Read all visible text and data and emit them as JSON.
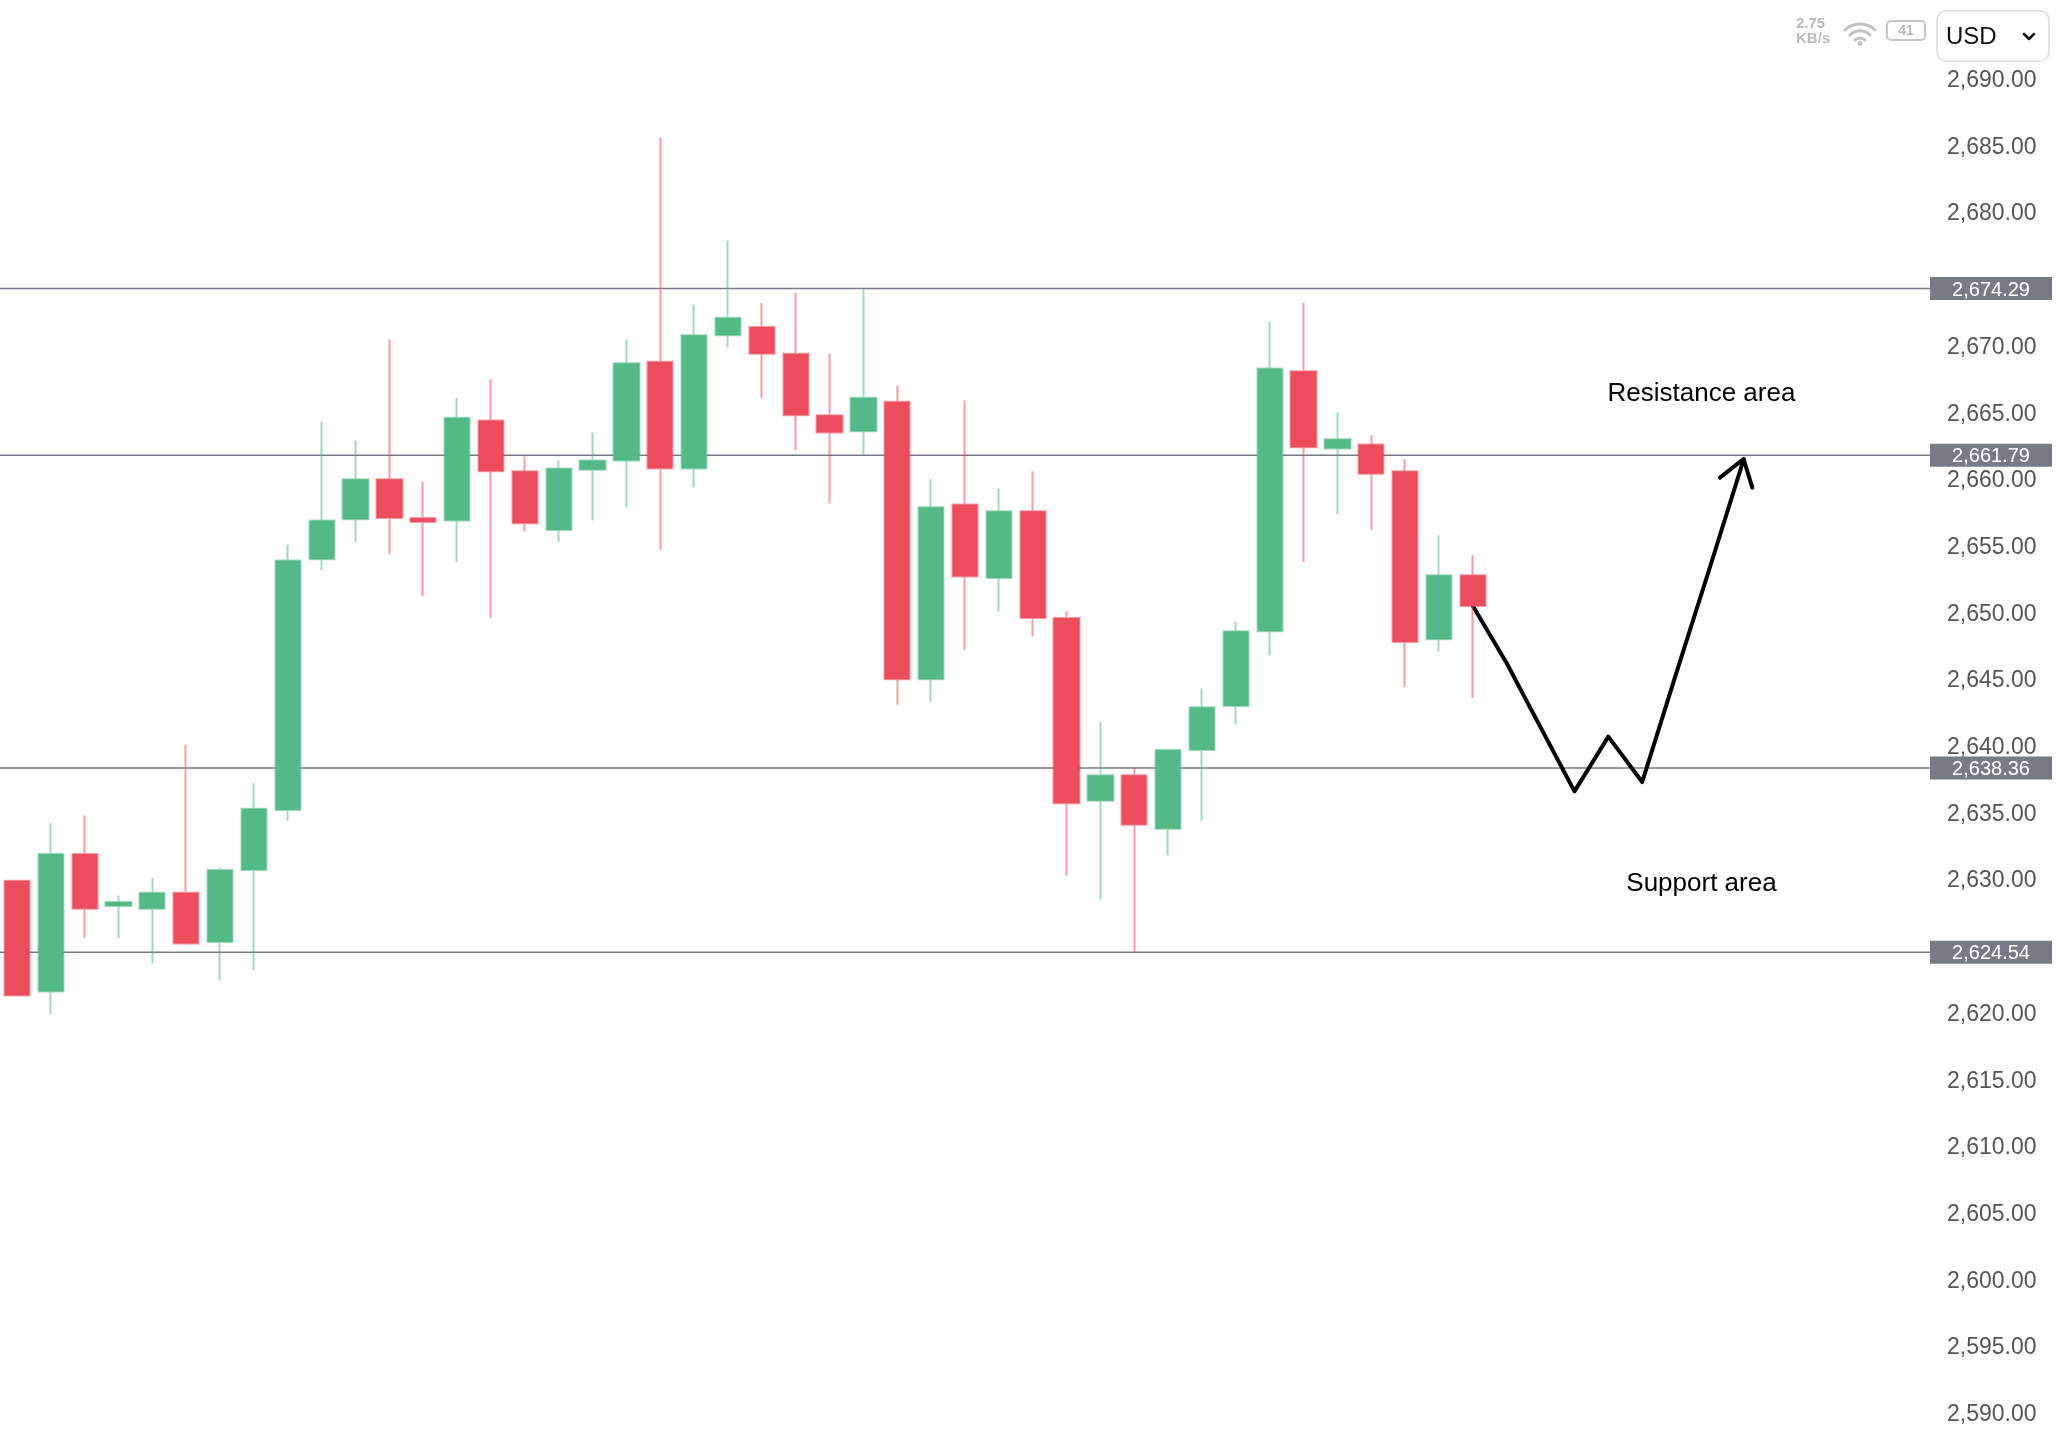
{
  "chart_data": {
    "type": "candlestick",
    "categories": [
      null,
      null,
      null,
      null,
      null,
      null,
      null,
      null,
      null,
      null,
      null,
      null,
      null,
      null,
      null,
      null,
      null,
      null,
      null,
      null,
      null,
      null,
      null,
      null,
      null,
      null,
      null,
      null,
      null,
      null,
      null,
      null,
      null,
      null,
      null,
      null,
      null,
      null,
      null,
      null,
      null,
      null,
      null,
      null,
      null,
      null,
      null,
      null,
      null,
      null,
      null,
      null,
      null,
      null,
      null,
      null,
      null
    ],
    "ohlc": [
      [
        2629.9,
        2629.9,
        2621.3,
        2621.3
      ],
      [
        2621.6,
        2634.2,
        2619.9,
        2631.9
      ],
      [
        2631.9,
        2634.8,
        2625.6,
        2627.8
      ],
      [
        2628.0,
        2628.8,
        2625.6,
        2628.3
      ],
      [
        2627.8,
        2630.1,
        2623.7,
        2629.0
      ],
      [
        2629.0,
        2640.1,
        2625.1,
        2625.2
      ],
      [
        2625.3,
        2630.9,
        2622.4,
        2630.7
      ],
      [
        2630.7,
        2637.2,
        2623.2,
        2635.3
      ],
      [
        2635.2,
        2655.1,
        2634.4,
        2653.9
      ],
      [
        2654.0,
        2664.3,
        2653.2,
        2656.9
      ],
      [
        2657.0,
        2662.9,
        2655.3,
        2660.0
      ],
      [
        2660.0,
        2670.5,
        2654.4,
        2657.1
      ],
      [
        2657.1,
        2659.8,
        2651.2,
        2656.8
      ],
      [
        2656.9,
        2666.1,
        2653.8,
        2664.6
      ],
      [
        2664.4,
        2667.5,
        2649.6,
        2660.6
      ],
      [
        2660.6,
        2661.7,
        2656.1,
        2656.7
      ],
      [
        2656.2,
        2661.4,
        2655.3,
        2660.8
      ],
      [
        2660.7,
        2663.5,
        2656.9,
        2661.4
      ],
      [
        2661.4,
        2670.5,
        2657.9,
        2668.7
      ],
      [
        2668.8,
        2685.6,
        2654.7,
        2660.8
      ],
      [
        2660.8,
        2673.1,
        2659.4,
        2670.8
      ],
      [
        2670.8,
        2677.9,
        2669.9,
        2672.1
      ],
      [
        2671.4,
        2673.2,
        2666.1,
        2669.4
      ],
      [
        2669.4,
        2674.0,
        2662.2,
        2664.8
      ],
      [
        2664.8,
        2669.4,
        2658.2,
        2663.5
      ],
      [
        2663.6,
        2674.29,
        2661.79,
        2666.1
      ],
      [
        2665.8,
        2667.0,
        2643.1,
        2645.0
      ],
      [
        2645.0,
        2660.0,
        2643.3,
        2657.9
      ],
      [
        2658.1,
        2665.9,
        2647.2,
        2652.7
      ],
      [
        2652.6,
        2659.3,
        2650.1,
        2657.6
      ],
      [
        2657.6,
        2660.6,
        2648.2,
        2649.6
      ],
      [
        2649.6,
        2650.1,
        2630.3,
        2635.7
      ],
      [
        2635.9,
        2641.8,
        2628.5,
        2637.8
      ],
      [
        2637.8,
        2638.36,
        2624.54,
        2634.1
      ],
      [
        2633.8,
        2639.8,
        2631.8,
        2639.7
      ],
      [
        2639.7,
        2644.3,
        2634.4,
        2642.9
      ],
      [
        2643.0,
        2649.3,
        2641.6,
        2648.6
      ],
      [
        2648.6,
        2671.8,
        2646.8,
        2668.3
      ],
      [
        2668.1,
        2673.2,
        2653.8,
        2662.4
      ],
      [
        2662.3,
        2665.0,
        2657.4,
        2663.0
      ],
      [
        2662.6,
        2663.3,
        2656.2,
        2660.4
      ],
      [
        2660.6,
        2661.5,
        2644.4,
        2647.8
      ],
      [
        2648.0,
        2655.8,
        2647.1,
        2652.8
      ],
      [
        2652.8,
        2654.3,
        2643.6,
        2650.5
      ],
      null,
      null,
      null,
      null,
      null,
      null,
      null,
      null,
      null,
      null,
      null,
      null,
      null
    ],
    "colors": [
      "#eb4d5c",
      "#53b987",
      "#eb4d5c",
      "#53b987",
      "#53b987",
      "#eb4d5c",
      "#53b987",
      "#53b987",
      "#53b987",
      "#53b987",
      "#53b987",
      "#eb4d5c",
      "#eb4d5c",
      "#53b987",
      "#eb4d5c",
      "#eb4d5c",
      "#53b987",
      "#53b987",
      "#53b987",
      "#eb4d5c",
      "#53b987",
      "#53b987",
      "#eb4d5c",
      "#eb4d5c",
      "#eb4d5c",
      "#53b987",
      "#eb4d5c",
      "#53b987",
      "#eb4d5c",
      "#53b987",
      "#eb4d5c",
      "#eb4d5c",
      "#53b987",
      "#eb4d5c",
      "#53b987",
      "#53b987",
      "#53b987",
      "#53b987",
      "#eb4d5c",
      "#53b987",
      "#eb4d5c",
      "#eb4d5c",
      "#53b987",
      "#eb4d5c",
      null,
      null,
      null,
      null,
      null,
      null,
      null,
      null,
      null,
      null,
      null,
      null,
      null
    ],
    "series": [
      {
        "type": "line",
        "color": "#000000",
        "values": [
          null,
          null,
          null,
          null,
          null,
          null,
          null,
          null,
          null,
          null,
          null,
          null,
          null,
          null,
          null,
          null,
          null,
          null,
          null,
          null,
          null,
          null,
          null,
          null,
          null,
          null,
          null,
          null,
          null,
          null,
          null,
          null,
          null,
          null,
          null,
          null,
          null,
          null,
          null,
          null,
          null,
          null,
          null,
          2650.5,
          2646.2,
          2641.4,
          2636.6,
          2640.7,
          2637.3,
          2645.4,
          2653.4,
          2661.5,
          null,
          null,
          null,
          null,
          null
        ]
      }
    ],
    "ylim": [
      2590,
      2690
    ],
    "yticks": [
      {
        "value": 2590,
        "label": "2,590.00"
      },
      {
        "value": 2595,
        "label": "2,595.00"
      },
      {
        "value": 2600,
        "label": "2,600.00"
      },
      {
        "value": 2605,
        "label": "2,605.00"
      },
      {
        "value": 2610,
        "label": "2,610.00"
      },
      {
        "value": 2615,
        "label": "2,615.00"
      },
      {
        "value": 2620,
        "label": "2,620.00"
      },
      {
        "value": 2625,
        "label": null
      },
      {
        "value": 2630,
        "label": "2,630.00"
      },
      {
        "value": 2635,
        "label": "2,635.00"
      },
      {
        "value": 2640,
        "label": "2,640.00"
      },
      {
        "value": 2645,
        "label": "2,645.00"
      },
      {
        "value": 2650,
        "label": "2,650.00"
      },
      {
        "value": 2655,
        "label": "2,655.00"
      },
      {
        "value": 2660,
        "label": "2,660.00"
      },
      {
        "value": 2665,
        "label": "2,665.00"
      },
      {
        "value": 2670,
        "label": "2,670.00"
      },
      {
        "value": 2675,
        "label": null
      },
      {
        "value": 2680,
        "label": "2,680.00"
      },
      {
        "value": 2685,
        "label": "2,685.00"
      },
      {
        "value": 2690,
        "label": "2,690.00"
      }
    ],
    "ref_lines": [
      {
        "axis": "y",
        "value": 2674.29,
        "label": "2,674.29",
        "color": "#787b86"
      },
      {
        "axis": "y",
        "value": 2661.79,
        "label": "2,661.79",
        "color": "#787b86"
      },
      {
        "axis": "y",
        "value": 2638.36,
        "label": "2,638.36",
        "color": "#787b86"
      },
      {
        "axis": "y",
        "value": 2624.54,
        "label": "2,624.54",
        "color": "#787b86"
      }
    ],
    "annotations": [
      "Resistance area",
      "Support area",
      "2.75 KB/s",
      "41",
      "USD"
    ],
    "tick_labels": "y",
    "line_style": "solid"
  }
}
